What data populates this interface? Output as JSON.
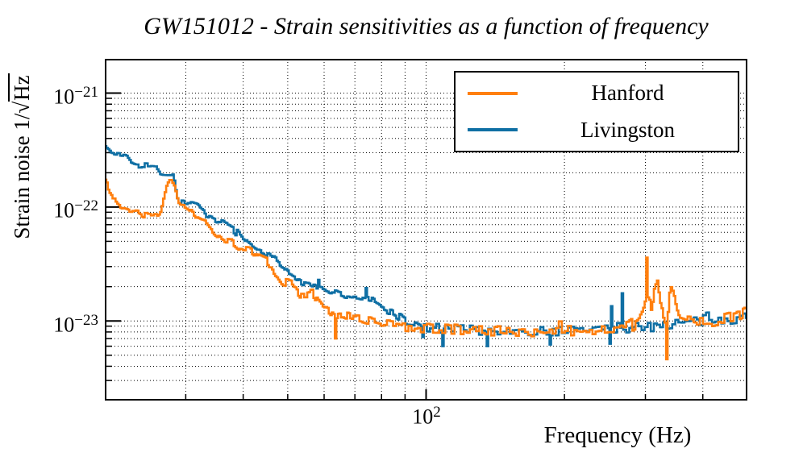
{
  "title": "GW151012 - Strain sensitivities as a function of frequency",
  "axes": {
    "ylabel": {
      "prefix": "Strain noise 1/",
      "radical": "√",
      "radicand": "Hz"
    },
    "xlabel": "Frequency (Hz)",
    "yticks": [
      {
        "base": "10",
        "exp": "−21"
      },
      {
        "base": "10",
        "exp": "−22"
      },
      {
        "base": "10",
        "exp": "−23"
      }
    ],
    "xtick": {
      "base": "10",
      "exp": "2"
    }
  },
  "legend": {
    "entries": [
      {
        "label": "Hanford",
        "color": "#ff7f0e"
      },
      {
        "label": "Livingston",
        "color": "#0f6fa4"
      }
    ]
  },
  "chart_data": {
    "type": "line",
    "title": "GW151012 - Strain sensitivities as a function of frequency",
    "xlabel": "Frequency (Hz)",
    "ylabel": "Strain noise 1/√Hz",
    "xscale": "log",
    "yscale": "log",
    "xlim": [
      20,
      500
    ],
    "ylim": [
      2e-24,
      2e-21
    ],
    "grid": "dotted-all-log-subdivisions",
    "legend_position": "top-right",
    "xticks": {
      "major": [
        100
      ],
      "minor": [
        30,
        40,
        50,
        60,
        70,
        80,
        90,
        200,
        300,
        400
      ]
    },
    "yticks": {
      "major": [
        1e-21,
        1e-22,
        1e-23
      ],
      "minor": [
        9e-22,
        8e-22,
        7e-22,
        6e-22,
        5e-22,
        4e-22,
        3e-22,
        2e-22,
        9e-23,
        8e-23,
        7e-23,
        6e-23,
        5e-23,
        4e-23,
        3e-23,
        2e-23,
        9e-24,
        8e-24,
        7e-24,
        6e-24,
        5e-24,
        4e-24,
        3e-24
      ]
    },
    "series": [
      {
        "name": "Livingston",
        "color": "#0f6fa4",
        "draw_order": 1,
        "seed": 7,
        "noise_bands": [
          [
            32,
            0.018
          ],
          [
            45,
            0.026
          ],
          [
            90,
            0.035
          ],
          [
            260,
            0.045
          ],
          [
            501,
            0.05
          ]
        ],
        "envelope": [
          [
            20,
            3.4e-22
          ],
          [
            20.5,
            3.05e-22
          ],
          [
            21,
            2.95e-22
          ],
          [
            22.3,
            2.85e-22
          ],
          [
            23,
            2.3e-22
          ],
          [
            25.8,
            2.25e-22
          ],
          [
            26.4,
            1.95e-22
          ],
          [
            28.1,
            1.9e-22
          ],
          [
            28.8,
            1.12e-22
          ],
          [
            31.5,
            1.05e-22
          ],
          [
            32.5,
            9.4e-23
          ],
          [
            33,
            8.2e-23
          ],
          [
            34.5,
            7.6e-23
          ],
          [
            36,
            7.2e-23
          ],
          [
            38,
            6.6e-23
          ],
          [
            39.5,
            5.4e-23
          ],
          [
            41,
            4.6e-23
          ],
          [
            43,
            4e-23
          ],
          [
            45.5,
            3.7e-23
          ],
          [
            47.5,
            3.2e-23
          ],
          [
            50,
            2.6e-23
          ],
          [
            53,
            2.3e-23
          ],
          [
            57,
            2e-23
          ],
          [
            62,
            1.8e-23
          ],
          [
            67,
            1.65e-23
          ],
          [
            72,
            1.6e-23
          ],
          [
            76,
            1.5e-23
          ],
          [
            80,
            1.3e-23
          ],
          [
            84,
            1.2e-23
          ],
          [
            90,
            1e-23
          ],
          [
            97,
            8.8e-24
          ],
          [
            105,
            8.6e-24
          ],
          [
            130,
            8.3e-24
          ],
          [
            160,
            8e-24
          ],
          [
            200,
            8.2e-24
          ],
          [
            240,
            8.5e-24
          ],
          [
            280,
            8.8e-24
          ],
          [
            320,
            9.2e-24
          ],
          [
            360,
            9.6e-24
          ],
          [
            400,
            1e-23
          ],
          [
            450,
            1.05e-23
          ],
          [
            500,
            1.1e-23
          ]
        ],
        "spikes": [
          [
            58,
            2.3e-23
          ],
          [
            74,
            1.95e-23
          ],
          [
            98,
            7.2e-24
          ],
          [
            108,
            6e-24
          ],
          [
            135,
            6e-24
          ],
          [
            185,
            6.2e-24
          ],
          [
            250,
            6.3e-24
          ],
          [
            253,
            1.35e-23
          ],
          [
            266,
            1.75e-23
          ],
          [
            500,
            8.8e-23
          ]
        ]
      },
      {
        "name": "Hanford",
        "color": "#ff7f0e",
        "draw_order": 2,
        "seed": 13,
        "noise_bands": [
          [
            32,
            0.018
          ],
          [
            45,
            0.026
          ],
          [
            90,
            0.035
          ],
          [
            260,
            0.045
          ],
          [
            501,
            0.05
          ]
        ],
        "envelope": [
          [
            20,
            1.73e-22
          ],
          [
            20.3,
            1.55e-22
          ],
          [
            20.8,
            1.25e-22
          ],
          [
            21.2,
            1.07e-22
          ],
          [
            21.6,
            1e-22
          ],
          [
            22.5,
            9.4e-23
          ],
          [
            23.5,
            9.2e-23
          ],
          [
            24.2,
            8.6e-23
          ],
          [
            25.8,
            8.5e-23
          ],
          [
            26.3,
            9e-23
          ],
          [
            26.9,
            1.3e-22
          ],
          [
            27.3,
            1.7e-22
          ],
          [
            28.2,
            1.68e-22
          ],
          [
            28.6,
            1.2e-22
          ],
          [
            29,
            1.03e-22
          ],
          [
            29.8,
            1.02e-22
          ],
          [
            30.5,
            9.6e-23
          ],
          [
            31.5,
            8.1e-23
          ],
          [
            33,
            7.4e-23
          ],
          [
            34.5,
            5.9e-23
          ],
          [
            36,
            5.2e-23
          ],
          [
            37.5,
            5e-23
          ],
          [
            39,
            4.4e-23
          ],
          [
            41,
            4.3e-23
          ],
          [
            43,
            3.7e-23
          ],
          [
            45,
            3.4e-23
          ],
          [
            46,
            3e-23
          ],
          [
            48.5,
            2.2e-23
          ],
          [
            51,
            2.1e-23
          ],
          [
            53,
            1.7e-23
          ],
          [
            55,
            1.7e-23
          ],
          [
            56.5,
            1.75e-23
          ],
          [
            59,
            1.35e-23
          ],
          [
            61,
            1.25e-23
          ],
          [
            63,
            1.1e-23
          ],
          [
            66,
            1.15e-23
          ],
          [
            70,
            1.05e-23
          ],
          [
            75,
            1e-23
          ],
          [
            80,
            9.5e-24
          ],
          [
            90,
            9e-24
          ],
          [
            100,
            8.6e-24
          ],
          [
            130,
            8.3e-24
          ],
          [
            170,
            8e-24
          ],
          [
            210,
            8.2e-24
          ],
          [
            250,
            8.5e-24
          ],
          [
            275,
            9e-24
          ],
          [
            290,
            1.05e-23
          ],
          [
            297,
            1.35e-23
          ],
          [
            303,
            1.5e-23
          ],
          [
            308,
            1.35e-23
          ],
          [
            313,
            1.9e-23
          ],
          [
            317,
            2.2e-23
          ],
          [
            322,
            1.35e-23
          ],
          [
            328,
            1.05e-23
          ],
          [
            332,
            9e-24
          ],
          [
            337,
            1.6e-23
          ],
          [
            341,
            1.9e-23
          ],
          [
            345,
            1.7e-23
          ],
          [
            350,
            1.2e-23
          ],
          [
            357,
            1.05e-23
          ],
          [
            370,
            1e-23
          ],
          [
            390,
            9.8e-24
          ],
          [
            420,
            1e-23
          ],
          [
            450,
            1.05e-23
          ],
          [
            480,
            1.1e-23
          ],
          [
            497,
            1.2e-23
          ]
        ],
        "spikes": [
          [
            63.5,
            7e-24
          ],
          [
            300,
            3.6e-23
          ],
          [
            333,
            4.6e-24
          ],
          [
            499,
            4.8e-24
          ]
        ]
      }
    ]
  }
}
